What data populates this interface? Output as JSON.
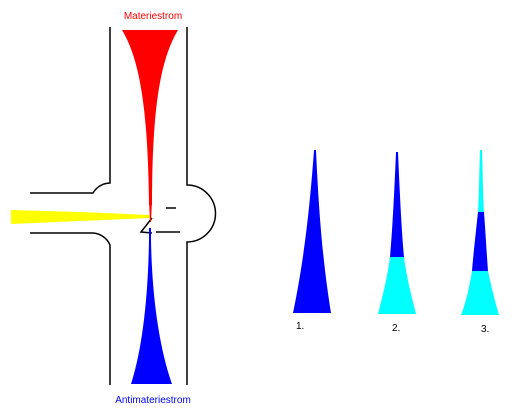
{
  "labels": {
    "matter_stream": "Materiestrom",
    "antimatter_stream": "Antimateriestrom"
  },
  "steps": [
    {
      "label": "1."
    },
    {
      "label": "2."
    },
    {
      "label": "3."
    }
  ],
  "colors": {
    "matter": "#ff0000",
    "antimatter": "#0000ff",
    "beam": "#ffff00",
    "annihilated": "#00ffff",
    "outline": "#000000"
  }
}
